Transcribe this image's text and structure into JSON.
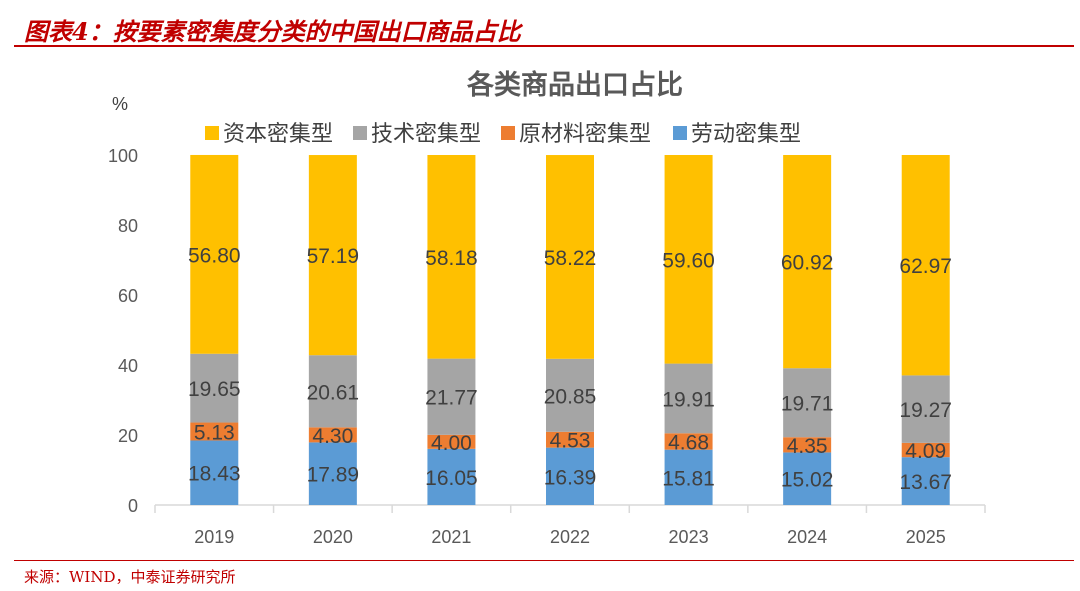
{
  "figure_title": "图表4：按要素密集度分类的中国出口商品占比",
  "source": "来源：WIND，中泰证券研究所",
  "chart_data": {
    "type": "bar",
    "stacked": true,
    "title": "各类商品出口占比",
    "ylabel": "%",
    "xlabel": "",
    "ylim": [
      0,
      100
    ],
    "yticks": [
      0,
      20,
      40,
      60,
      80,
      100
    ],
    "grid": false,
    "legend_position": "top",
    "categories": [
      "2019",
      "2020",
      "2021",
      "2022",
      "2023",
      "2024",
      "2025"
    ],
    "series": [
      {
        "name": "劳动密集型",
        "color": "#5b9bd5",
        "values": [
          18.43,
          17.89,
          16.05,
          16.39,
          15.81,
          15.02,
          13.67
        ]
      },
      {
        "name": "原材料密集型",
        "color": "#ed7d31",
        "values": [
          5.13,
          4.3,
          4.0,
          4.53,
          4.68,
          4.35,
          4.09
        ]
      },
      {
        "name": "技术密集型",
        "color": "#a5a5a5",
        "values": [
          19.65,
          20.61,
          21.77,
          20.85,
          19.91,
          19.71,
          19.27
        ]
      },
      {
        "name": "资本密集型",
        "color": "#ffc000",
        "values": [
          56.8,
          57.19,
          58.18,
          58.22,
          59.6,
          60.92,
          62.97
        ]
      }
    ],
    "legend_order": [
      "资本密集型",
      "技术密集型",
      "原材料密集型",
      "劳动密集型"
    ]
  }
}
